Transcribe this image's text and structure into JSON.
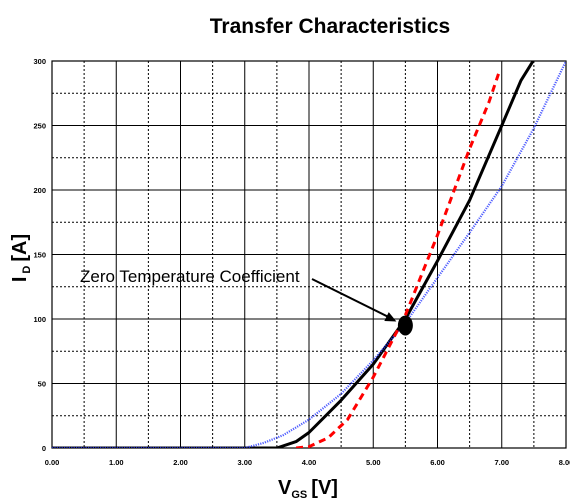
{
  "chart_data": {
    "type": "line",
    "title": "Transfer Characteristics",
    "xlabel": {
      "main": "V",
      "sub": "GS",
      "unit": "[V]"
    },
    "ylabel": {
      "main": "I",
      "sub": "D",
      "unit": "[A]"
    },
    "xlim": [
      0,
      8
    ],
    "ylim": [
      0,
      300
    ],
    "x_ticks": [
      0,
      1,
      2,
      3,
      4,
      5,
      6,
      7,
      8
    ],
    "x_tick_labels": [
      "0.00",
      "1.00",
      "2.00",
      "3.00",
      "4.00",
      "5.00",
      "6.00",
      "7.00",
      "8.00"
    ],
    "y_ticks": [
      0,
      50,
      100,
      150,
      200,
      250,
      300
    ],
    "y_tick_labels": [
      "0",
      "50",
      "100",
      "150",
      "200",
      "250",
      "300"
    ],
    "grid": true,
    "legend": "none",
    "series": [
      {
        "style": "solid",
        "color": "#000000",
        "points": [
          [
            0,
            0
          ],
          [
            3,
            0
          ],
          [
            3.5,
            0
          ],
          [
            3.8,
            5
          ],
          [
            4.0,
            12
          ],
          [
            4.5,
            37
          ],
          [
            5.0,
            65
          ],
          [
            5.5,
            100
          ],
          [
            6.0,
            145
          ],
          [
            6.5,
            192
          ],
          [
            7.0,
            250
          ],
          [
            7.3,
            285
          ],
          [
            7.5,
            301
          ]
        ]
      },
      {
        "style": "dotted",
        "color": "#2233ff",
        "points": [
          [
            0,
            0
          ],
          [
            3,
            0
          ],
          [
            3.3,
            4
          ],
          [
            3.6,
            10
          ],
          [
            4.0,
            22
          ],
          [
            4.5,
            42
          ],
          [
            5.0,
            68
          ],
          [
            5.5,
            97
          ],
          [
            6.0,
            132
          ],
          [
            6.5,
            167
          ],
          [
            7.0,
            203
          ],
          [
            7.5,
            248
          ],
          [
            8.0,
            300
          ]
        ]
      },
      {
        "style": "dashed",
        "color": "#ff0000",
        "points": [
          [
            3.8,
            0
          ],
          [
            4.0,
            1
          ],
          [
            4.3,
            8
          ],
          [
            4.6,
            22
          ],
          [
            5.0,
            55
          ],
          [
            5.5,
            103
          ],
          [
            6.0,
            165
          ],
          [
            6.5,
            232
          ],
          [
            6.8,
            268
          ],
          [
            6.95,
            290
          ]
        ]
      }
    ],
    "annotations": [
      {
        "text": "Zero Temperature Coefficient",
        "x": 5.5,
        "y": 95
      }
    ]
  }
}
